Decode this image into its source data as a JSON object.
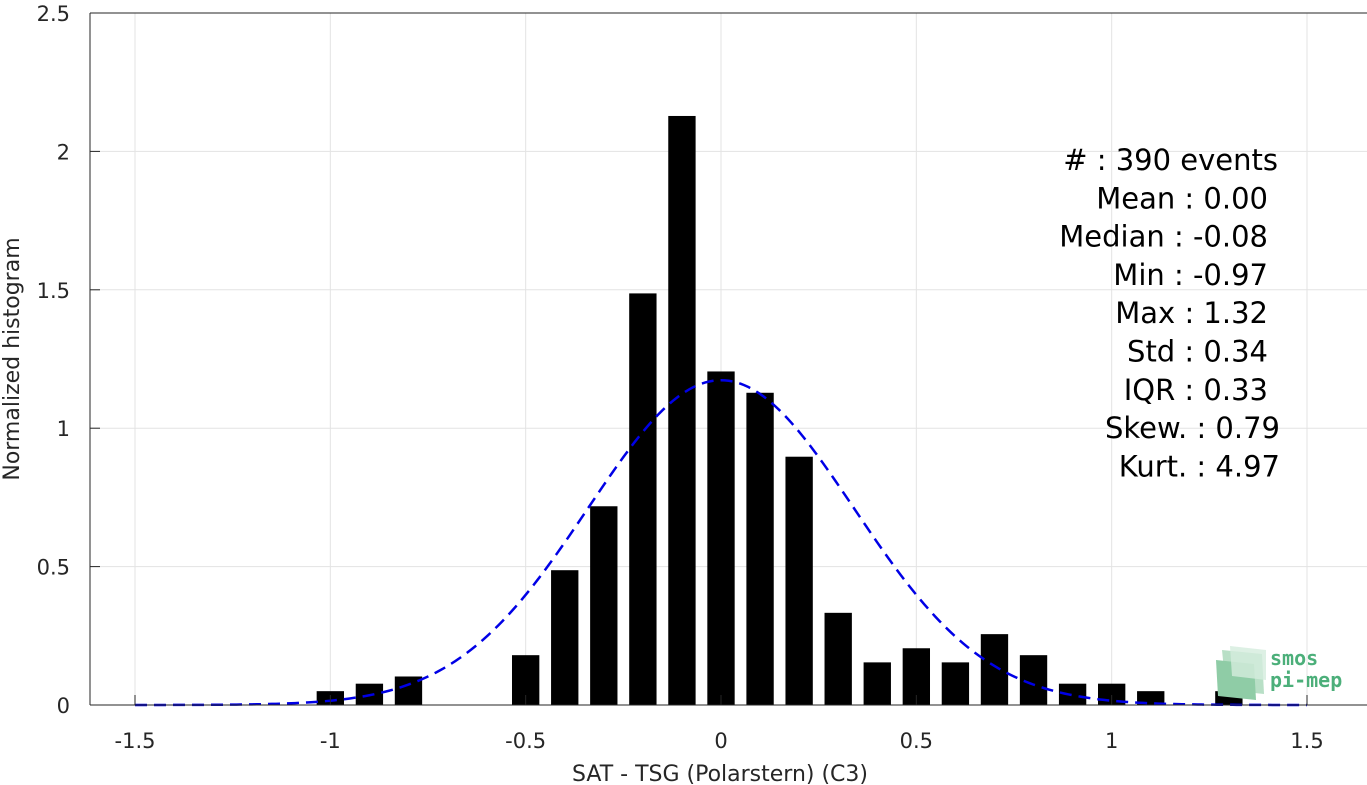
{
  "chart_data": {
    "type": "bar",
    "xlabel": "SAT - TSG (Polarstern) (C3)",
    "ylabel": "Normalized histogram",
    "xlim": [
      -1.5,
      1.5
    ],
    "ylim": [
      0,
      2.5
    ],
    "grid": true,
    "bar_width": 0.07,
    "x_ticks": [
      -1.5,
      -1,
      -0.5,
      0,
      0.5,
      1,
      1.5
    ],
    "x_tick_labels": [
      "-1.5",
      "-1",
      "-0.5",
      "0",
      "0.5",
      "1",
      "1.5"
    ],
    "y_ticks": [
      0,
      0.5,
      1,
      1.5,
      2,
      2.5
    ],
    "y_tick_labels": [
      "0",
      "0.5",
      "1",
      "1.5",
      "2",
      "2.5"
    ],
    "bars": {
      "x": [
        -1.0,
        -0.9,
        -0.8,
        -0.5,
        -0.4,
        -0.3,
        -0.2,
        -0.1,
        0.0,
        0.1,
        0.2,
        0.3,
        0.4,
        0.5,
        0.6,
        0.7,
        0.8,
        0.9,
        1.0,
        1.1,
        1.3
      ],
      "values": [
        0.05,
        0.077,
        0.103,
        0.18,
        0.487,
        0.718,
        1.487,
        2.128,
        1.205,
        1.128,
        0.897,
        0.333,
        0.154,
        0.205,
        0.154,
        0.256,
        0.18,
        0.077,
        0.077,
        0.05,
        0.05
      ],
      "color": "#000000"
    },
    "fit_curve": {
      "kind": "normal",
      "mean": 0.0,
      "std": 0.34,
      "color": "#0000e6",
      "style": "dashed"
    },
    "annotations": [
      "#  : 390 events",
      "Mean : 0.00",
      "Median : -0.08",
      "Min : -0.97",
      "Max : 1.32",
      "Std : 0.34",
      "IQR : 0.33",
      "Skew. : 0.79",
      "Kurt. : 4.97"
    ]
  },
  "logo": {
    "line1": "smos",
    "line2": "pi-mep",
    "color": "#4caf7a"
  }
}
